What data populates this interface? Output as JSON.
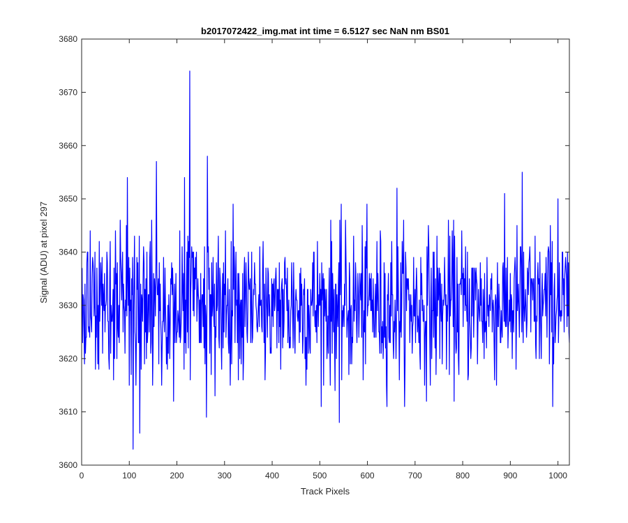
{
  "chart_data": {
    "type": "line",
    "title": "b2017072422_img.mat int time = 6.5127 sec  NaN nm BS01",
    "xlabel": "Track Pixels",
    "ylabel": "Signal (ADU) at pixel 297",
    "xlim": [
      0,
      1024
    ],
    "ylim": [
      3600,
      3680
    ],
    "xticks": [
      0,
      100,
      200,
      300,
      400,
      500,
      600,
      700,
      800,
      900,
      1000
    ],
    "yticks": [
      3600,
      3610,
      3620,
      3630,
      3640,
      3650,
      3660,
      3670,
      3680
    ],
    "grid": false,
    "legend": "none",
    "series": [
      {
        "color": "#0000ff",
        "x_start": 1,
        "x_step": 1,
        "n_points": 1024,
        "mean": 3630,
        "std": 7,
        "notable_points": [
          {
            "x": 108,
            "y": 3603
          },
          {
            "x": 122,
            "y": 3606
          },
          {
            "x": 96,
            "y": 3654
          },
          {
            "x": 157,
            "y": 3657
          },
          {
            "x": 216,
            "y": 3654
          },
          {
            "x": 227,
            "y": 3674
          },
          {
            "x": 262,
            "y": 3609
          },
          {
            "x": 264,
            "y": 3658
          },
          {
            "x": 541,
            "y": 3608
          },
          {
            "x": 662,
            "y": 3652
          },
          {
            "x": 925,
            "y": 3655
          },
          {
            "x": 1000,
            "y": 3650
          }
        ]
      }
    ]
  }
}
